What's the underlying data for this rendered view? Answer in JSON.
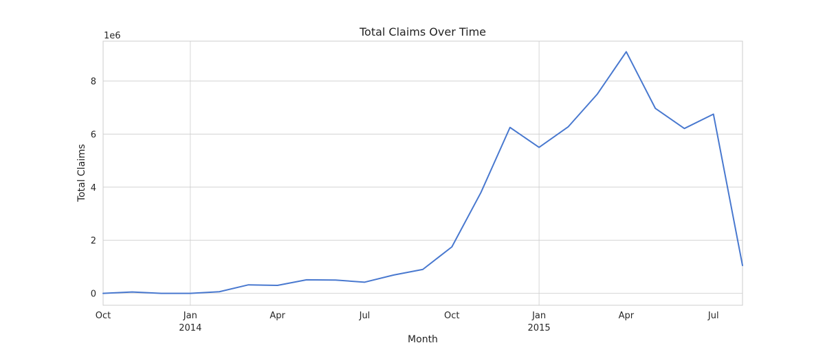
{
  "chart_data": {
    "type": "line",
    "title": "Total Claims Over Time",
    "xlabel": "Month",
    "ylabel": "Total Claims",
    "y_offset_label": "1e6",
    "y_scale_factor": 1000000,
    "ylim": [
      -450000,
      9500000
    ],
    "xlim": [
      "2013-10",
      "2015-08"
    ],
    "grid": true,
    "line_color": "#4878cf",
    "y_ticks": [
      {
        "value": 0,
        "label": "0"
      },
      {
        "value": 2000000,
        "label": "2"
      },
      {
        "value": 4000000,
        "label": "4"
      },
      {
        "value": 6000000,
        "label": "6"
      },
      {
        "value": 8000000,
        "label": "8"
      }
    ],
    "x_ticks": [
      {
        "date": "2013-10",
        "label": "Oct",
        "sublabel": "",
        "grid": false
      },
      {
        "date": "2014-01",
        "label": "Jan",
        "sublabel": "2014",
        "grid": true
      },
      {
        "date": "2014-04",
        "label": "Apr",
        "sublabel": "",
        "grid": false
      },
      {
        "date": "2014-07",
        "label": "Jul",
        "sublabel": "",
        "grid": false
      },
      {
        "date": "2014-10",
        "label": "Oct",
        "sublabel": "",
        "grid": false
      },
      {
        "date": "2015-01",
        "label": "Jan",
        "sublabel": "2015",
        "grid": true
      },
      {
        "date": "2015-04",
        "label": "Apr",
        "sublabel": "",
        "grid": false
      },
      {
        "date": "2015-07",
        "label": "Jul",
        "sublabel": "",
        "grid": false
      }
    ],
    "x": [
      "2013-10",
      "2013-11",
      "2013-12",
      "2014-01",
      "2014-02",
      "2014-03",
      "2014-04",
      "2014-05",
      "2014-06",
      "2014-07",
      "2014-08",
      "2014-09",
      "2014-10",
      "2014-11",
      "2014-12",
      "2015-01",
      "2015-02",
      "2015-03",
      "2015-04",
      "2015-05",
      "2015-06",
      "2015-07",
      "2015-08"
    ],
    "values": [
      0,
      50000,
      0,
      0,
      60000,
      320000,
      300000,
      510000,
      500000,
      420000,
      690000,
      900000,
      1750000,
      3800000,
      6250000,
      5500000,
      6270000,
      7500000,
      9100000,
      6970000,
      6210000,
      6750000,
      1050000
    ]
  }
}
